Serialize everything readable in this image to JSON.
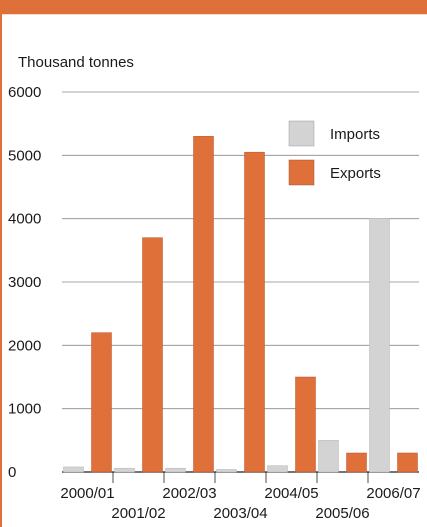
{
  "chart_data": {
    "type": "bar",
    "title": "",
    "ylabel": "Thousand tonnes",
    "xlabel": "",
    "categories": [
      "2000/01",
      "2001/02",
      "2002/03",
      "2003/04",
      "2004/05",
      "2005/06",
      "2006/07"
    ],
    "series": [
      {
        "name": "Imports",
        "color": "#d3d3d3",
        "values": [
          80,
          60,
          60,
          40,
          100,
          500,
          4000
        ]
      },
      {
        "name": "Exports",
        "color": "#e0703a",
        "values": [
          2200,
          3700,
          5300,
          5050,
          1500,
          300,
          300
        ]
      }
    ],
    "ylim": [
      0,
      6000
    ],
    "yticks": [
      "0",
      "1000",
      "2000",
      "3000",
      "4000",
      "5000",
      "6000"
    ],
    "grid": true,
    "legend_position": "top-right"
  },
  "colors": {
    "accent": "#e0703a",
    "imports": "#d3d3d3",
    "exports": "#e0703a"
  }
}
